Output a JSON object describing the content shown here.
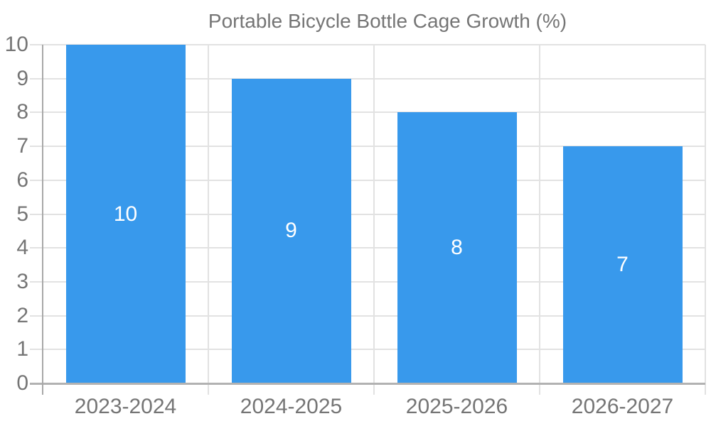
{
  "legend": {
    "label": "Portable Bicycle Bottle Cage Growth (%)"
  },
  "colors": {
    "bar": "#3899ec",
    "axis": "#a8a8a8",
    "baseline": "#b2b2b2",
    "grid": "#e2e2e2",
    "tick_text": "#757575",
    "value_text": "#ffffff"
  },
  "chart_data": {
    "type": "bar",
    "title": "Portable Bicycle Bottle Cage Growth (%)",
    "categories": [
      "2023-2024",
      "2024-2025",
      "2025-2026",
      "2026-2027"
    ],
    "values": [
      10,
      9,
      8,
      7
    ],
    "xlabel": "",
    "ylabel": "",
    "ylim": [
      0,
      10
    ],
    "yticks": [
      0,
      1,
      2,
      3,
      4,
      5,
      6,
      7,
      8,
      9,
      10
    ],
    "grid": true,
    "legend_position": "top-center",
    "value_labels": "inside-middle-white"
  }
}
